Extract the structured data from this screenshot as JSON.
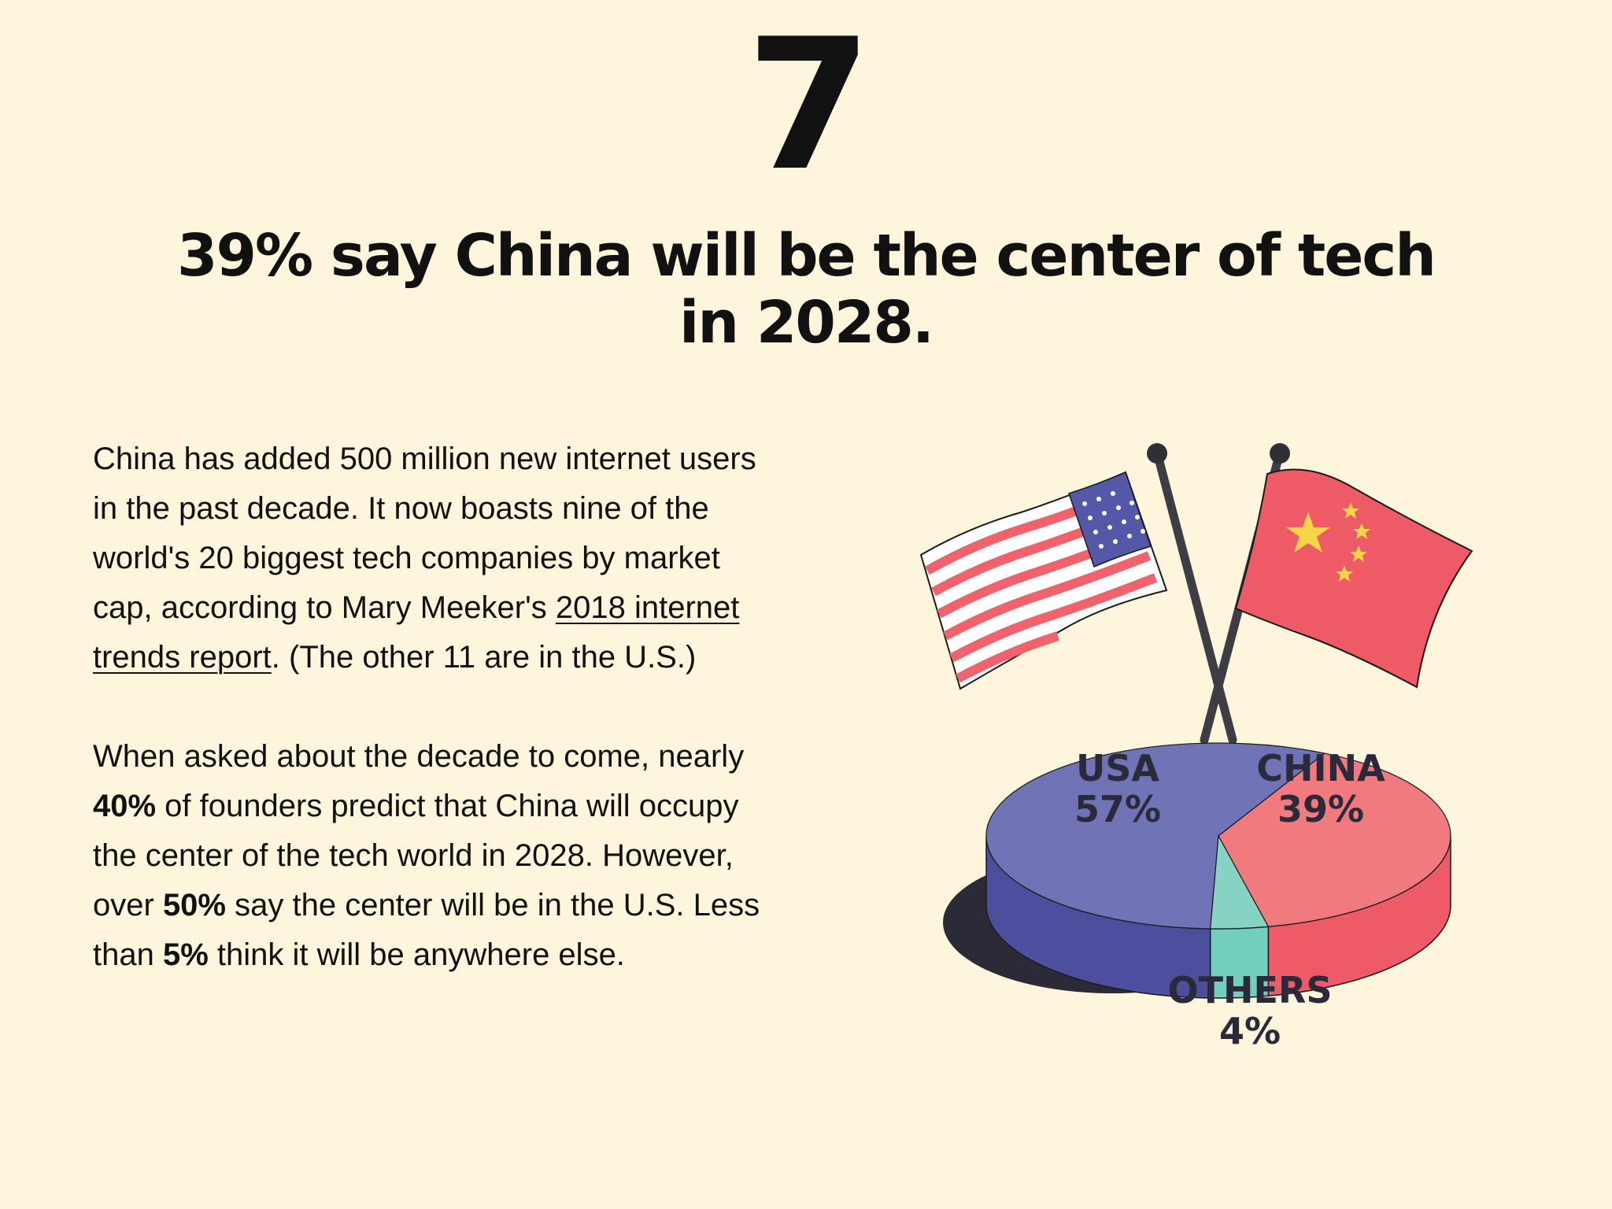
{
  "section_number": "7",
  "headline": "39% say China will be the center of tech in 2028.",
  "paragraph1": {
    "text_before_link": "China has added 500 million new internet users in the past decade. It now boasts nine of the world's 20 biggest tech companies by market cap, according to Mary Meeker's ",
    "link_text": "2018 internet trends report",
    "text_after_link": ". (The other 11 are in the U.S.)"
  },
  "paragraph2": {
    "t1": "When asked about the decade to come, nearly ",
    "b1": "40%",
    "t2": " of founders predict that China will occupy the center of the tech world in 2028. However, over ",
    "b2": "50%",
    "t3": " say the center will be in the U.S. Less than ",
    "b3": "5%",
    "t4": " think it will be anywhere else."
  },
  "flags": {
    "left": "usa-flag-icon",
    "right": "china-flag-icon"
  },
  "chart_data": {
    "type": "pie",
    "style": "3d",
    "categories": [
      "USA",
      "CHINA",
      "OTHERS"
    ],
    "values": [
      57,
      39,
      4
    ],
    "labels": [
      "57%",
      "39%",
      "4%"
    ],
    "colors": {
      "USA": "#7073b6",
      "USA_side": "#4d4f9e",
      "CHINA": "#f07a7e",
      "CHINA_side": "#ee5a66",
      "OTHERS": "#86d3c4",
      "OTHERS_side": "#72cfbd",
      "shadow": "#2b2a36"
    }
  }
}
